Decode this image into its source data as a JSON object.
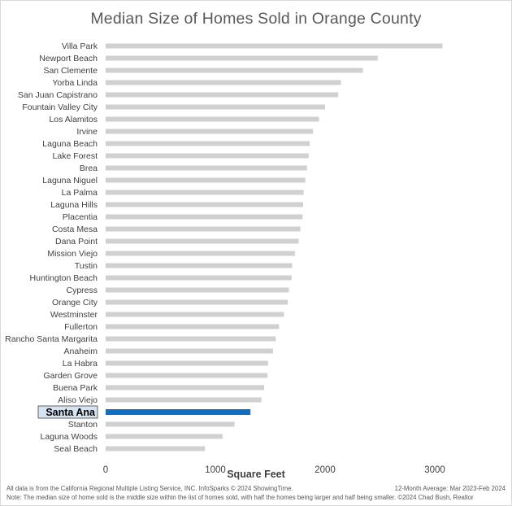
{
  "chart_data": {
    "type": "bar",
    "orientation": "horizontal",
    "title": "Median Size of Homes Sold in Orange County",
    "xlabel": "Square Feet",
    "ylabel": "",
    "xlim": [
      0,
      3400
    ],
    "xticks": [
      0,
      1000,
      2000,
      3000
    ],
    "highlight": "Santa Ana",
    "categories": [
      "Villa Park",
      "Newport Beach",
      "San Clemente",
      "Yorba Linda",
      "San Juan Capistrano",
      "Fountain Valley City",
      "Los Alamitos",
      "Irvine",
      "Laguna Beach",
      "Lake Forest",
      "Brea",
      "Laguna Niguel",
      "La Palma",
      "Laguna Hills",
      "Placentia",
      "Costa Mesa",
      "Dana Point",
      "Mission Viejo",
      "Tustin",
      "Huntington Beach",
      "Cypress",
      "Orange City",
      "Westminster",
      "Fullerton",
      "Rancho Santa Margarita",
      "Anaheim",
      "La Habra",
      "Garden Grove",
      "Buena Park",
      "Aliso Viejo",
      "Santa Ana",
      "Stanton",
      "Laguna Woods",
      "Seal Beach"
    ],
    "values": [
      3070,
      2480,
      2345,
      2145,
      2120,
      2000,
      1945,
      1890,
      1860,
      1850,
      1835,
      1820,
      1805,
      1800,
      1795,
      1775,
      1760,
      1725,
      1700,
      1695,
      1670,
      1660,
      1625,
      1580,
      1550,
      1525,
      1480,
      1475,
      1445,
      1420,
      1320,
      1175,
      1065,
      905
    ]
  },
  "colors": {
    "bar": "#d0d0d0",
    "highlight_bar": "#0f6fc0",
    "highlight_label_bg": "#d6e4f2"
  },
  "footer": {
    "source": "All data is from the California Regional Multiple Listing Service, INC. InfoSparks © 2024 ShowingTime.",
    "period": "12-Month Average: Mar 2023-Feb 2024",
    "note": "Note: The median size of home sold is the middle size within the list of homes sold, with half the homes being larger and half being smaller.   ©2024 Chad Bush, Realtor"
  }
}
